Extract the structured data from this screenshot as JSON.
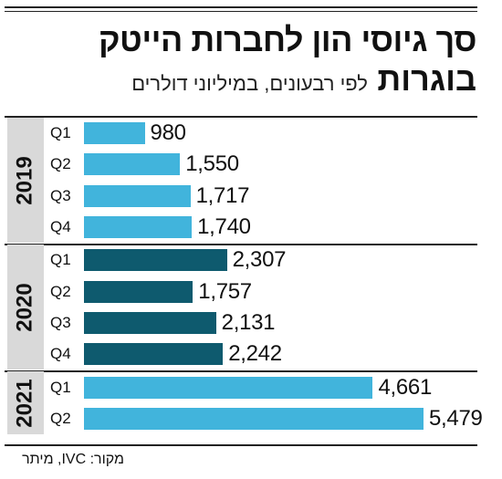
{
  "chart_data": {
    "type": "bar",
    "orientation": "horizontal",
    "title": "סך גיוסי הון לחברות הייטק",
    "title_line2": "בוגרות",
    "subtitle": "לפי רבעונים, במיליוני דולרים",
    "source": "מקור: IVC, מיתר",
    "groups": [
      {
        "year": "2019",
        "color": "#41b4dc",
        "bars": [
          {
            "quarter": "Q1",
            "value": 980,
            "label": "980"
          },
          {
            "quarter": "Q2",
            "value": 1550,
            "label": "1,550"
          },
          {
            "quarter": "Q3",
            "value": 1717,
            "label": "1,717"
          },
          {
            "quarter": "Q4",
            "value": 1740,
            "label": "1,740"
          }
        ]
      },
      {
        "year": "2020",
        "color": "#0e5a6e",
        "bars": [
          {
            "quarter": "Q1",
            "value": 2307,
            "label": "2,307"
          },
          {
            "quarter": "Q2",
            "value": 1757,
            "label": "1,757"
          },
          {
            "quarter": "Q3",
            "value": 2131,
            "label": "2,131"
          },
          {
            "quarter": "Q4",
            "value": 2242,
            "label": "2,242"
          }
        ]
      },
      {
        "year": "2021",
        "color": "#41b4dc",
        "bars": [
          {
            "quarter": "Q1",
            "value": 4661,
            "label": "4,661"
          },
          {
            "quarter": "Q2",
            "value": 5479,
            "label": "5,479"
          }
        ]
      }
    ],
    "xlim": [
      0,
      5479
    ]
  }
}
